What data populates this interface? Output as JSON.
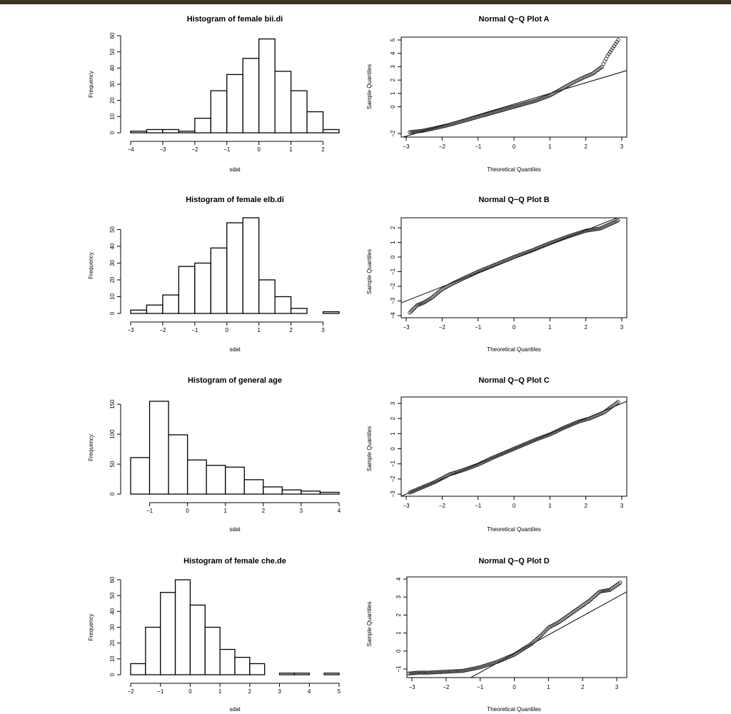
{
  "chart_data": [
    {
      "type": "histogram",
      "title": "Histogram of female bii.di",
      "xlabel": "sdat",
      "ylabel": "Frequency",
      "xlim": [
        -4,
        2.5
      ],
      "ylim": [
        0,
        60
      ],
      "xticks": [
        -4,
        -3,
        -2,
        -1,
        0,
        1,
        2
      ],
      "yticks": [
        0,
        10,
        20,
        30,
        40,
        50,
        60
      ],
      "bins": [
        -4,
        -3.5,
        -3,
        -2.5,
        -2,
        -1.5,
        -1,
        -0.5,
        0,
        0.5,
        1,
        1.5,
        2,
        2.5
      ],
      "counts": [
        1,
        2,
        2,
        1,
        9,
        26,
        36,
        46,
        58,
        38,
        26,
        13,
        2
      ]
    },
    {
      "type": "qqplot",
      "title": "Normal Q−Q Plot A",
      "xlabel": "Theoretical Quantiles",
      "ylabel": "Sample Quantiles",
      "xlim": [
        -3,
        3
      ],
      "ylim": [
        -2,
        5
      ],
      "xticks": [
        -3,
        -2,
        -1,
        0,
        1,
        2,
        3
      ],
      "yticks": [
        -2,
        0,
        1,
        2,
        3,
        4,
        5
      ],
      "line": [
        [
          -3,
          -2.2
        ],
        [
          3,
          2.6
        ]
      ],
      "quantile_curve": [
        [
          -2.9,
          -1.9
        ],
        [
          -2.55,
          -1.8
        ],
        [
          -2.2,
          -1.6
        ],
        [
          -1.8,
          -1.35
        ],
        [
          -1.4,
          -1.05
        ],
        [
          -1,
          -0.75
        ],
        [
          -0.6,
          -0.45
        ],
        [
          -0.2,
          -0.15
        ],
        [
          0.2,
          0.15
        ],
        [
          0.6,
          0.45
        ],
        [
          1,
          0.85
        ],
        [
          1.3,
          1.3
        ],
        [
          1.6,
          1.75
        ],
        [
          1.9,
          2.15
        ],
        [
          2.2,
          2.5
        ],
        [
          2.45,
          3.0
        ],
        [
          2.6,
          3.8
        ],
        [
          2.9,
          5.0
        ]
      ]
    },
    {
      "type": "histogram",
      "title": "Histogram of female elb.di",
      "xlabel": "sdat",
      "ylabel": "Frequency",
      "xlim": [
        -3,
        3.5
      ],
      "ylim": [
        0,
        57
      ],
      "xticks": [
        -3,
        -2,
        -1,
        0,
        1,
        2,
        3
      ],
      "yticks": [
        0,
        10,
        20,
        30,
        40,
        50
      ],
      "bins": [
        -3,
        -2.5,
        -2,
        -1.5,
        -1,
        -0.5,
        0,
        0.5,
        1,
        1.5,
        2,
        2.5,
        3,
        3.5
      ],
      "counts": [
        2,
        5,
        11,
        28,
        30,
        39,
        54,
        57,
        20,
        10,
        3,
        0,
        1
      ]
    },
    {
      "type": "qqplot",
      "title": "Normal Q−Q Plot B",
      "xlabel": "Theoretical Quantiles",
      "ylabel": "Sample Quantiles",
      "xlim": [
        -3,
        3
      ],
      "ylim": [
        -4,
        2
      ],
      "xticks": [
        -3,
        -2,
        -1,
        0,
        1,
        2,
        3
      ],
      "yticks": [
        -4,
        -3,
        -2,
        -1,
        0,
        1,
        2
      ],
      "line": [
        [
          -3,
          -3.0
        ],
        [
          3,
          2.8
        ]
      ],
      "quantile_curve": [
        [
          -2.9,
          -3.8
        ],
        [
          -2.7,
          -3.3
        ],
        [
          -2.5,
          -3.1
        ],
        [
          -2.3,
          -2.8
        ],
        [
          -2,
          -2.2
        ],
        [
          -1.7,
          -1.8
        ],
        [
          -1.4,
          -1.45
        ],
        [
          -1,
          -1.0
        ],
        [
          -0.5,
          -0.5
        ],
        [
          0,
          0
        ],
        [
          0.5,
          0.45
        ],
        [
          1,
          0.95
        ],
        [
          1.5,
          1.4
        ],
        [
          2,
          1.8
        ],
        [
          2.4,
          1.95
        ],
        [
          2.9,
          2.5
        ]
      ]
    },
    {
      "type": "histogram",
      "title": "Histogram of general age",
      "xlabel": "sdat",
      "ylabel": "Frequency",
      "xlim": [
        -1.5,
        4
      ],
      "ylim": [
        0,
        155
      ],
      "xticks": [
        -1,
        0,
        1,
        2,
        3,
        4
      ],
      "yticks": [
        0,
        50,
        100,
        150
      ],
      "bins": [
        -1.5,
        -1,
        -0.5,
        0,
        0.5,
        1,
        1.5,
        2,
        2.5,
        3,
        3.5,
        4
      ],
      "counts": [
        61,
        155,
        99,
        57,
        48,
        45,
        24,
        12,
        7,
        5,
        3
      ]
    },
    {
      "type": "qqplot",
      "title": "Normal Q−Q Plot C",
      "xlabel": "Theoretical Quantiles",
      "ylabel": "Sample Quantiles",
      "xlim": [
        -3,
        3
      ],
      "ylim": [
        -3,
        3
      ],
      "xticks": [
        -3,
        -2,
        -1,
        0,
        1,
        2,
        3
      ],
      "yticks": [
        -3,
        -2,
        -1,
        0,
        1,
        2,
        3
      ],
      "line": [
        [
          -3,
          -3.0
        ],
        [
          3,
          3.0
        ]
      ],
      "quantile_curve": [
        [
          -2.9,
          -2.9
        ],
        [
          -2.6,
          -2.6
        ],
        [
          -2.2,
          -2.2
        ],
        [
          -1.8,
          -1.7
        ],
        [
          -1.4,
          -1.4
        ],
        [
          -1,
          -1.05
        ],
        [
          -0.6,
          -0.6
        ],
        [
          -0.2,
          -0.2
        ],
        [
          0.2,
          0.2
        ],
        [
          0.6,
          0.6
        ],
        [
          1,
          0.95
        ],
        [
          1.4,
          1.4
        ],
        [
          1.8,
          1.8
        ],
        [
          2.1,
          2.0
        ],
        [
          2.5,
          2.4
        ],
        [
          2.9,
          3.1
        ]
      ]
    },
    {
      "type": "histogram",
      "title": "Histogram of female che.de",
      "xlabel": "sdat",
      "ylabel": "Frequency",
      "xlim": [
        -2,
        5
      ],
      "ylim": [
        0,
        60
      ],
      "xticks": [
        -2,
        -1,
        0,
        1,
        2,
        3,
        4,
        5
      ],
      "yticks": [
        0,
        10,
        20,
        30,
        40,
        50,
        60
      ],
      "bins": [
        -2,
        -1.5,
        -1,
        -0.5,
        0,
        0.5,
        1,
        1.5,
        2,
        2.5,
        3,
        3.5,
        4,
        4.5,
        5
      ],
      "counts": [
        7,
        30,
        52,
        60,
        44,
        30,
        16,
        11,
        7,
        0,
        1,
        1,
        0,
        1
      ]
    },
    {
      "type": "qqplot",
      "title": "Normal Q−Q Plot D",
      "xlabel": "Theoretical Quantiles",
      "ylabel": "Sample Quantiles",
      "xlim": [
        -3,
        3
      ],
      "ylim": [
        -1,
        4
      ],
      "xticks": [
        -3,
        -2,
        -1,
        0,
        1,
        2,
        3
      ],
      "yticks": [
        -1,
        0,
        1,
        2,
        3,
        4
      ],
      "line": [
        [
          -1.3,
          -1.5
        ],
        [
          3.3,
          3.3
        ]
      ],
      "quantile_curve": [
        [
          -3.1,
          -1.25
        ],
        [
          -2.8,
          -1.2
        ],
        [
          -2.5,
          -1.2
        ],
        [
          -2,
          -1.15
        ],
        [
          -1.5,
          -1.1
        ],
        [
          -1,
          -0.9
        ],
        [
          -0.5,
          -0.6
        ],
        [
          0,
          -0.2
        ],
        [
          0.5,
          0.4
        ],
        [
          0.8,
          0.9
        ],
        [
          1,
          1.3
        ],
        [
          1.3,
          1.6
        ],
        [
          1.6,
          2.0
        ],
        [
          1.9,
          2.4
        ],
        [
          2.2,
          2.8
        ],
        [
          2.5,
          3.3
        ],
        [
          2.8,
          3.4
        ],
        [
          3.1,
          3.8
        ]
      ]
    }
  ]
}
